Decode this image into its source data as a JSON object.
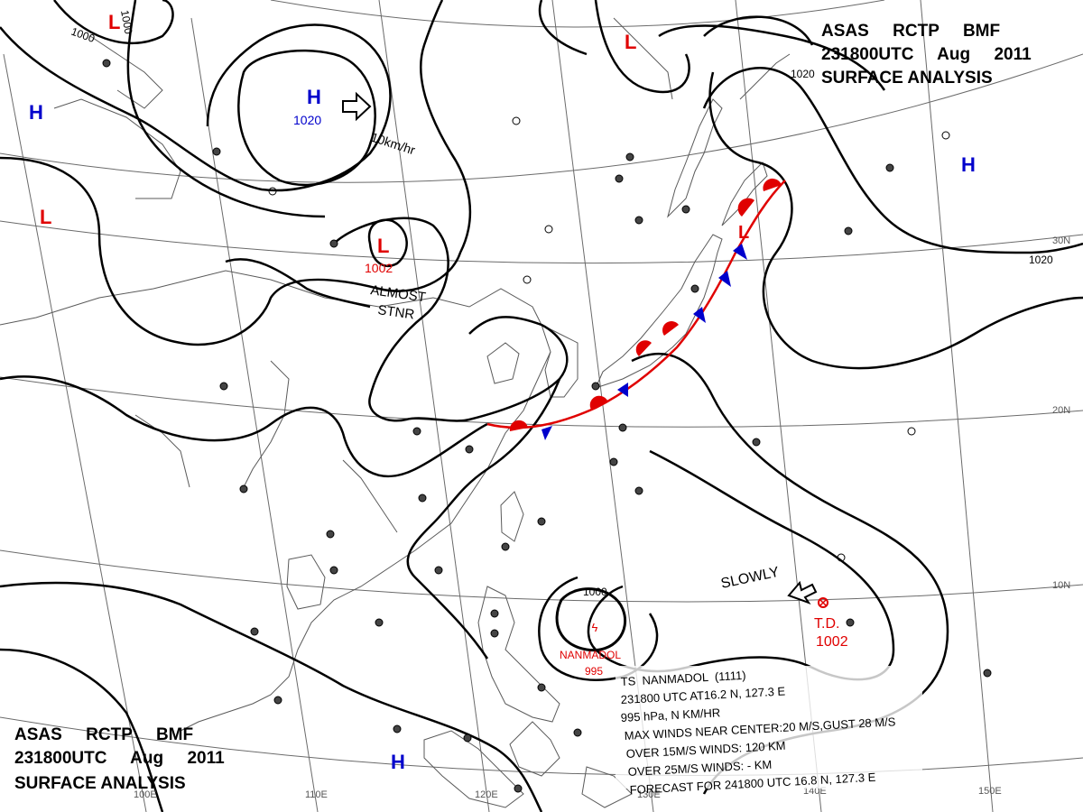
{
  "header": {
    "top_right": {
      "line1": "ASAS     RCTP     BMF",
      "line2": "231800UTC     Aug     2011",
      "line3": "SURFACE ANALYSIS"
    },
    "bottom_left": {
      "line1": "ASAS     RCTP     BMF",
      "line2": "231800UTC     Aug     2011",
      "line3": "SURFACE ANALYSIS"
    }
  },
  "pressure_centers": [
    {
      "type": "L",
      "value": "",
      "color": "#e00000"
    },
    {
      "type": "H",
      "value": "1020",
      "color": "#0000cc"
    },
    {
      "type": "L",
      "value": "1002",
      "color": "#e00000"
    },
    {
      "type": "L",
      "value": "",
      "color": "#e00000"
    },
    {
      "type": "H",
      "value": "",
      "color": "#0000cc"
    },
    {
      "type": "H",
      "value": "",
      "color": "#0000cc"
    },
    {
      "type": "H",
      "value": "",
      "color": "#0000cc"
    },
    {
      "type": "L",
      "value": "",
      "color": "#e00000"
    },
    {
      "type": "L",
      "value": "",
      "color": "#e00000"
    }
  ],
  "isobar_labels": [
    "1000",
    "1000",
    "1020",
    "1020",
    "1000"
  ],
  "annotations": {
    "high_motion": "10km/hr",
    "low_status_1": "ALMOST",
    "low_status_2": "STNR",
    "td_motion": "SLOWLY",
    "td_label": "T.D.",
    "td_pressure": "1002",
    "storm_name": "NANMADOL",
    "storm_pressure": "995"
  },
  "storm_info": {
    "line1": "TS  NANMADOL  (1111)",
    "line2": "231800 UTC  AT16.2 N, 127.3 E",
    "line3": "995 hPa, N   KM/HR",
    "line4": "MAX WINDS NEAR CENTER:20 M/S,GUST 28 M/S",
    "line5": "OVER 15M/S WINDS: 120 KM",
    "line6": "OVER 25M/S WINDS: - KM",
    "line7": "FORECAST FOR 241800 UTC 16.8 N, 127.3 E"
  },
  "grid_labels": {
    "lon": [
      "100E",
      "110E",
      "120E",
      "130E",
      "140E",
      "150E"
    ],
    "lat": [
      "30N",
      "20N",
      "10N"
    ]
  },
  "colors": {
    "low": "#e00000",
    "high": "#0000cc",
    "warm_front": "#e00000",
    "cold_front": "#0000cc",
    "isobar": "#000000",
    "coast": "#555555"
  }
}
